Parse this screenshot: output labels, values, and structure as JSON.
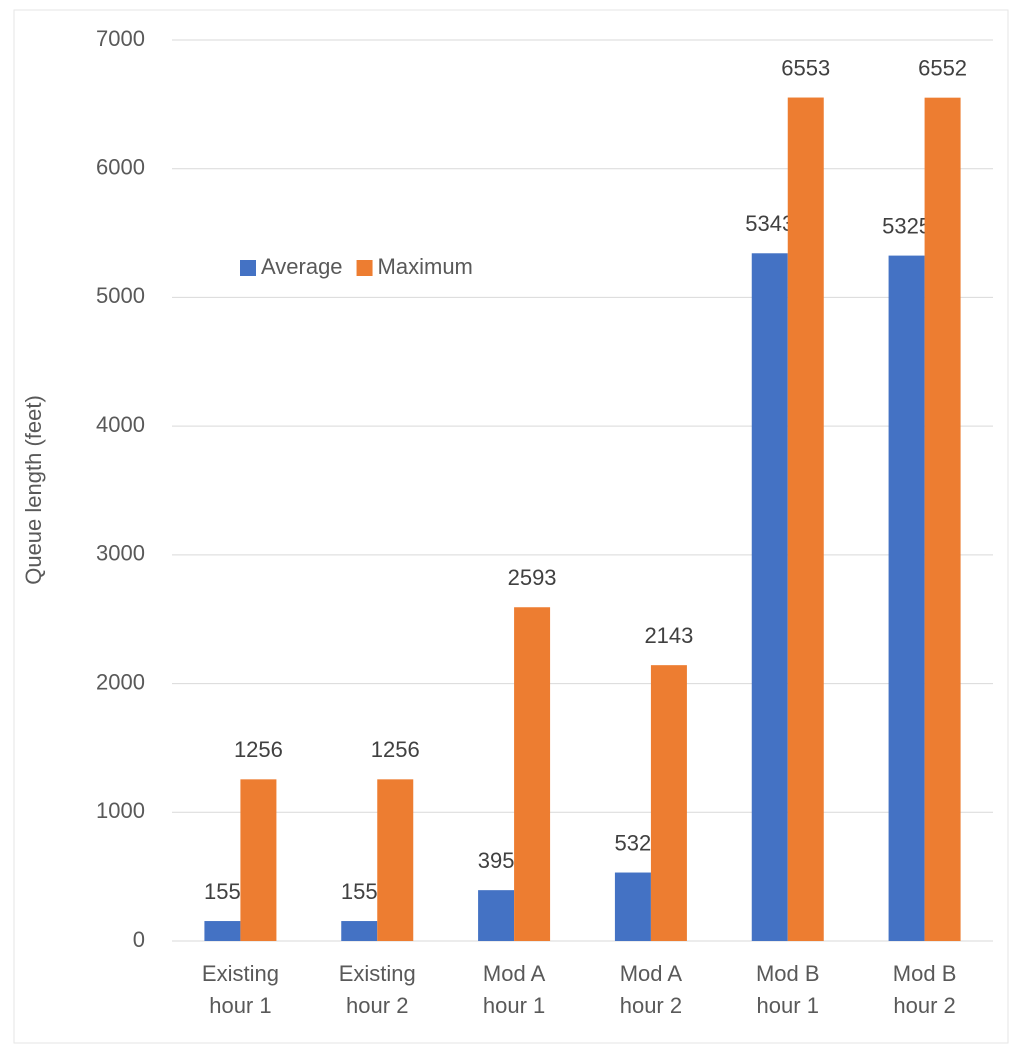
{
  "chart_data": {
    "type": "bar",
    "y_label": "Queue length (feet)",
    "categories": [
      "Existing hour 1",
      "Existing hour 2",
      "Mod A hour 1",
      "Mod A hour 2",
      "Mod B hour 1",
      "Mod B hour 2"
    ],
    "series": [
      {
        "name": "Average",
        "color": "#4472c4",
        "values": [
          155,
          155,
          395,
          532,
          5343,
          5325
        ]
      },
      {
        "name": "Maximum",
        "color": "#ed7d31",
        "values": [
          1256,
          1256,
          2593,
          2143,
          6553,
          6552
        ]
      }
    ],
    "ylim": [
      0,
      7000
    ],
    "yticks": [
      0,
      1000,
      2000,
      3000,
      4000,
      5000,
      6000,
      7000
    ],
    "grid": true,
    "legend": "upper left"
  }
}
